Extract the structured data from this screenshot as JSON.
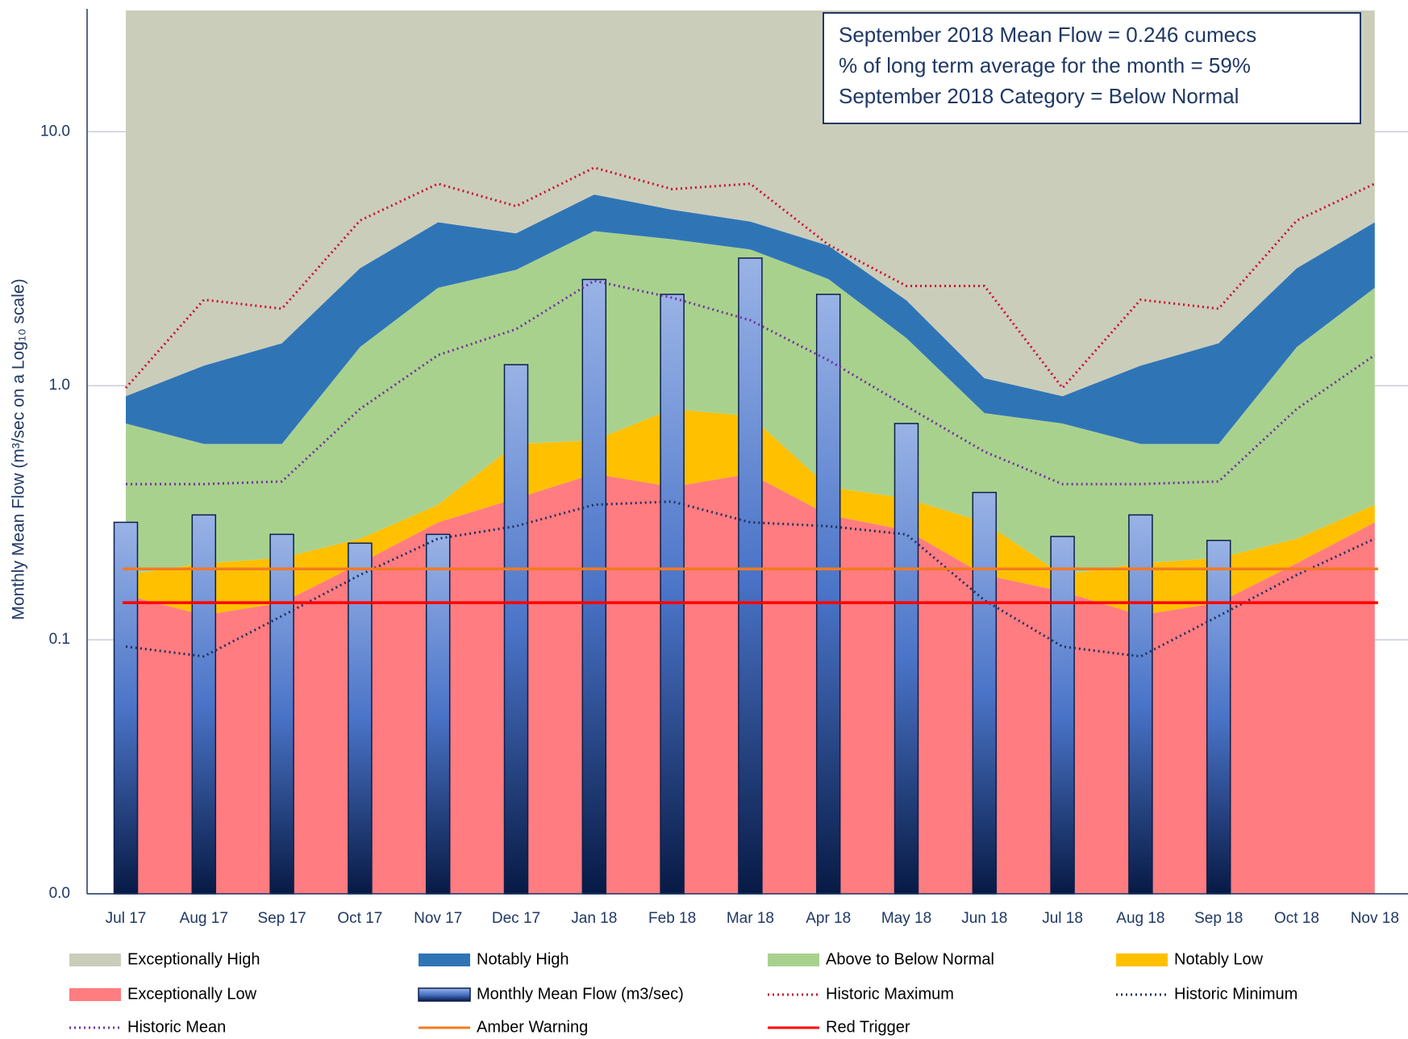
{
  "chart_data": {
    "type": "area-bar-line",
    "log_scale": true,
    "grid": true,
    "ylabel": "Monthly Mean Flow (m³/sec on a Log₁₀ scale)",
    "ylim": [
      0.01,
      30
    ],
    "yticks": [
      {
        "value": 0.01,
        "label": "0.0"
      },
      {
        "value": 0.1,
        "label": "0.1"
      },
      {
        "value": 1,
        "label": "1.0"
      },
      {
        "value": 10,
        "label": "10.0"
      }
    ],
    "categories": [
      "Jul 17",
      "Aug 17",
      "Sep 17",
      "Oct 17",
      "Nov 17",
      "Dec 17",
      "Jan 18",
      "Feb 18",
      "Mar 18",
      "Apr 18",
      "May 18",
      "Jun 18",
      "Jul 18",
      "Aug 18",
      "Sep 18",
      "Oct 18",
      "Nov 18"
    ],
    "annotations": [
      "September 2018 Mean Flow = 0.246 cumecs",
      "% of long term average for the month = 59%",
      "September 2018 Category = Below Normal"
    ],
    "series": [
      {
        "name": "Exceptionally High",
        "kind": "area",
        "color": "#cbcdbb"
      },
      {
        "name": "Notably High",
        "kind": "area",
        "color": "#2f75b6",
        "values": [
          0.91,
          1.2,
          1.47,
          2.9,
          4.4,
          3.98,
          5.66,
          4.93,
          4.43,
          3.56,
          2.17,
          1.07,
          0.91,
          1.2,
          1.47,
          2.9,
          4.4
        ]
      },
      {
        "name": "Above to Below Normal",
        "kind": "area",
        "color": "#a9d18e",
        "values": [
          0.71,
          0.59,
          0.59,
          1.42,
          2.43,
          2.86,
          4.06,
          3.77,
          3.44,
          2.63,
          1.54,
          0.78,
          0.71,
          0.59,
          0.59,
          1.42,
          2.43
        ]
      },
      {
        "name": "Notably Low",
        "kind": "area",
        "color": "#ffc000",
        "values": [
          0.18,
          0.2,
          0.21,
          0.25,
          0.34,
          0.59,
          0.61,
          0.81,
          0.76,
          0.4,
          0.36,
          0.29,
          0.18,
          0.2,
          0.21,
          0.25,
          0.34
        ]
      },
      {
        "name": "Exceptionally Low",
        "kind": "area",
        "color": "#ff7c80",
        "values": [
          0.15,
          0.125,
          0.14,
          0.2,
          0.29,
          0.36,
          0.45,
          0.4,
          0.45,
          0.31,
          0.27,
          0.18,
          0.155,
          0.125,
          0.14,
          0.2,
          0.29
        ]
      },
      {
        "name": "Monthly Mean Flow (m3/sec)",
        "kind": "bar",
        "color": "#2f5597",
        "values": [
          0.29,
          0.31,
          0.26,
          0.24,
          0.26,
          1.21,
          2.62,
          2.29,
          3.18,
          2.29,
          0.71,
          0.38,
          0.255,
          0.31,
          0.246,
          null,
          null
        ]
      },
      {
        "name": "Historic Maximum",
        "kind": "line",
        "style": "dotted",
        "color": "#c8102e",
        "values": [
          0.98,
          2.18,
          2.01,
          4.47,
          6.24,
          5.09,
          7.22,
          5.94,
          6.24,
          3.59,
          2.47,
          2.47,
          0.98,
          2.18,
          2.01,
          4.47,
          6.24
        ]
      },
      {
        "name": "Historic Minimum",
        "kind": "line",
        "style": "dotted",
        "color": "#1f2f5f",
        "values": [
          0.094,
          0.086,
          0.124,
          0.18,
          0.25,
          0.28,
          0.34,
          0.35,
          0.29,
          0.28,
          0.26,
          0.143,
          0.094,
          0.086,
          0.124,
          0.18,
          0.25
        ]
      },
      {
        "name": "Historic Mean",
        "kind": "line",
        "style": "dotted",
        "color": "#7030a0",
        "values": [
          0.41,
          0.41,
          0.42,
          0.81,
          1.32,
          1.67,
          2.59,
          2.22,
          1.81,
          1.26,
          0.83,
          0.55,
          0.41,
          0.41,
          0.42,
          0.81,
          1.32
        ]
      },
      {
        "name": "Amber Warning",
        "kind": "hline",
        "color": "#f47a20",
        "value": 0.19
      },
      {
        "name": "Red Trigger",
        "kind": "hline",
        "color": "#ff0000",
        "value": 0.14
      }
    ]
  }
}
